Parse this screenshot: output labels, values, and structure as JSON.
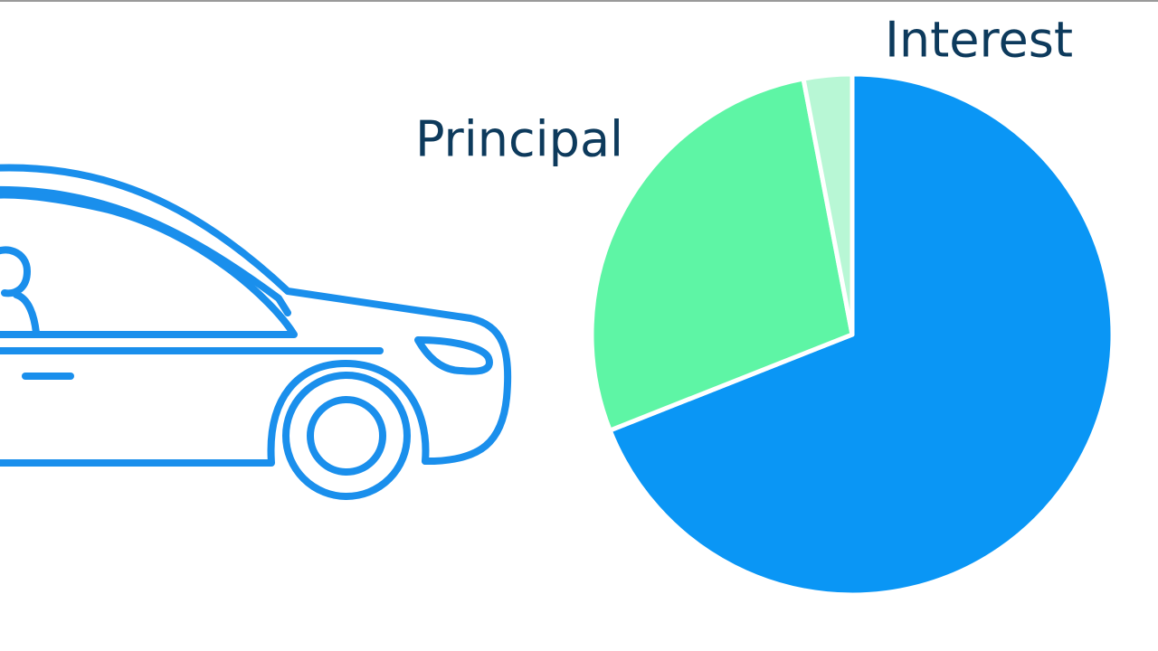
{
  "chart_data": {
    "type": "pie",
    "categories": [
      "Interest",
      "Principal",
      null
    ],
    "values": [
      69,
      28,
      3
    ],
    "colors": [
      "#0a96f5",
      "#5ef5a5",
      "#b8f7d5"
    ]
  }
}
